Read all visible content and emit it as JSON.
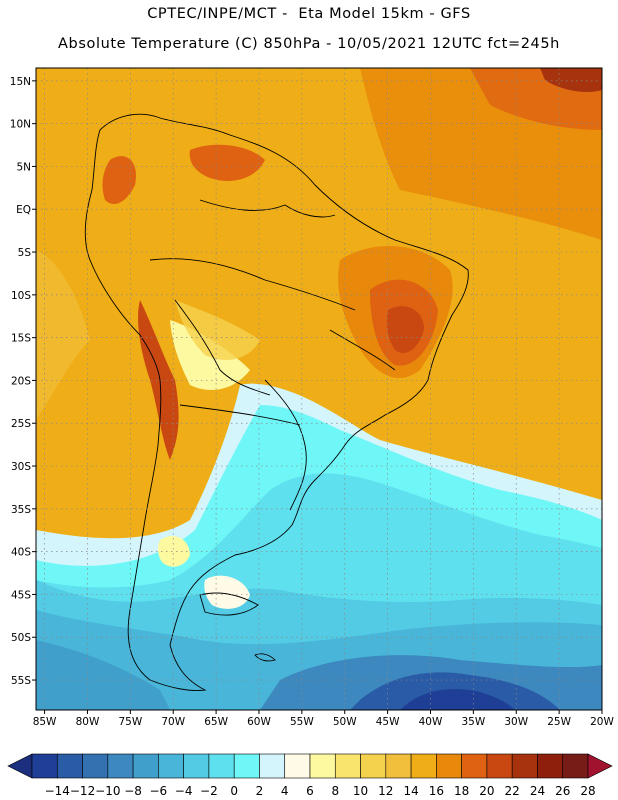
{
  "header": {
    "line1": "CPTEC/INPE/MCT -  Eta Model 15km - GFS",
    "line2": "Absolute Temperature (C) 850hPa - 10/05/2021 12UTC fct=245h"
  },
  "map": {
    "lon_range": [
      -86,
      -20
    ],
    "lat_range": [
      -58.5,
      16.5
    ],
    "lon_ticks": [
      "85W",
      "80W",
      "75W",
      "70W",
      "65W",
      "60W",
      "55W",
      "50W",
      "45W",
      "40W",
      "35W",
      "30W",
      "25W",
      "20W"
    ],
    "lat_ticks": [
      "15N",
      "10N",
      "5N",
      "EQ",
      "5S",
      "10S",
      "15S",
      "20S",
      "25S",
      "30S",
      "35S",
      "40S",
      "45S",
      "50S",
      "55S"
    ]
  },
  "colorbar": {
    "labels": [
      "-14",
      "-12",
      "-10",
      "-8",
      "-6",
      "-4",
      "-2",
      "0",
      "2",
      "4",
      "6",
      "8",
      "10",
      "12",
      "14",
      "16",
      "18",
      "20",
      "22",
      "24",
      "26",
      "28"
    ],
    "colors": [
      "#1e3f95",
      "#2a5ba6",
      "#3471b0",
      "#3c88bf",
      "#41a0cb",
      "#49b6d9",
      "#53cbe4",
      "#5fe0ee",
      "#6ff7f7",
      "#d3f5fb",
      "#fffbe6",
      "#fdf9a0",
      "#f9e46d",
      "#f5d24d",
      "#f2bf3c",
      "#efae17",
      "#e8890b",
      "#de6211",
      "#c94812",
      "#a6320e",
      "#8e1f0c",
      "#781c18"
    ],
    "under_color": "#1c2f7e",
    "over_color": "#a0122e"
  }
}
